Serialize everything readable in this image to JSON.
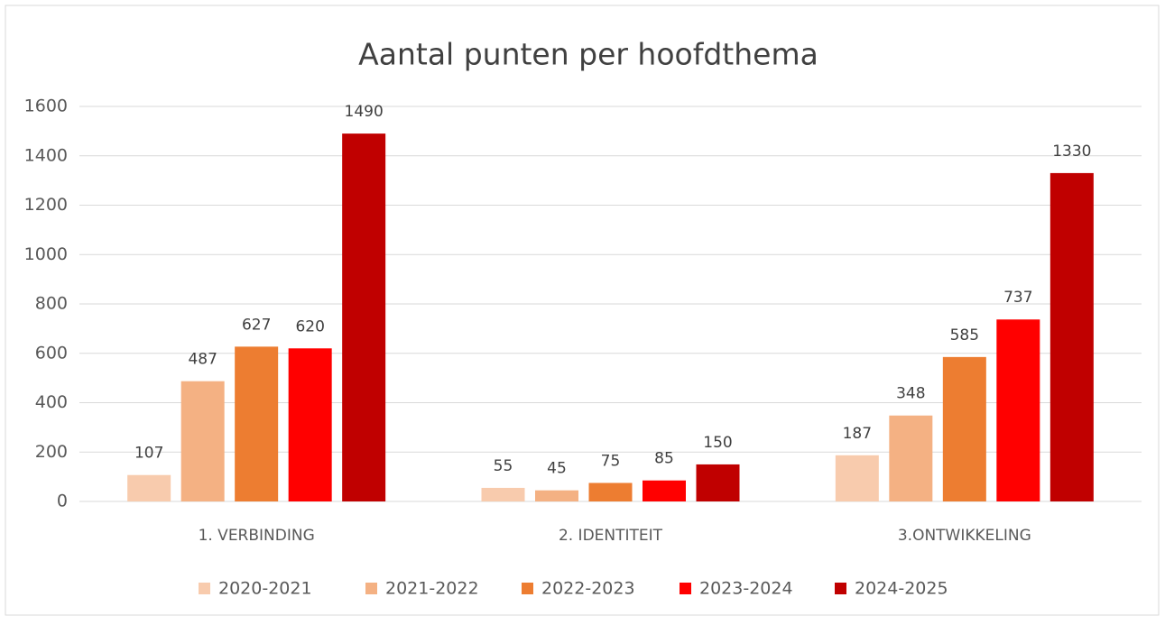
{
  "chart_data": {
    "type": "bar",
    "title": "Aantal punten per hoofdthema",
    "categories": [
      "1. VERBINDING",
      "2. IDENTITEIT",
      "3.ONTWIKKELING"
    ],
    "series": [
      {
        "name": "2020-2021",
        "color": "#f8cbad",
        "values": [
          107,
          55,
          187
        ]
      },
      {
        "name": "2021-2022",
        "color": "#f4b183",
        "values": [
          487,
          45,
          348
        ]
      },
      {
        "name": "2022-2023",
        "color": "#ed7d31",
        "values": [
          627,
          75,
          585
        ]
      },
      {
        "name": "2023-2024",
        "color": "#ff0000",
        "values": [
          620,
          85,
          737
        ]
      },
      {
        "name": "2024-2025",
        "color": "#c00000",
        "values": [
          1490,
          150,
          1330
        ]
      }
    ],
    "ylim": [
      0,
      1600
    ],
    "yticks": [
      0,
      200,
      400,
      600,
      800,
      1000,
      1200,
      1400,
      1600
    ],
    "grid": true,
    "legend": "bottom"
  }
}
